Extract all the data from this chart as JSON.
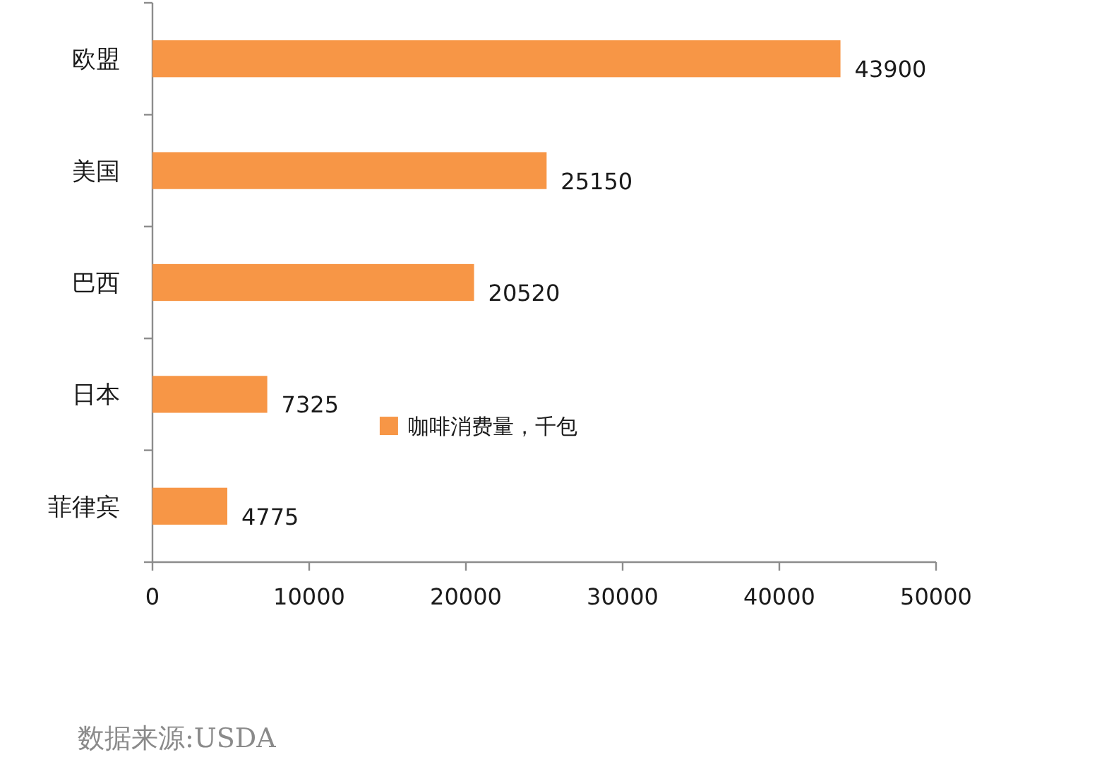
{
  "chart_data": {
    "type": "bar",
    "orientation": "horizontal",
    "categories": [
      "欧盟",
      "美国",
      "巴西",
      "日本",
      "菲律宾"
    ],
    "series": [
      {
        "name": "咖啡消费量，千包",
        "color": "#f79646",
        "values": [
          43900,
          25150,
          20520,
          7325,
          4775
        ]
      }
    ],
    "xlim": [
      0,
      50000
    ],
    "xticks": [
      0,
      10000,
      20000,
      30000,
      40000,
      50000
    ],
    "data_labels": true,
    "legend": "bottom",
    "annotations": [
      "数据来源:USDA"
    ]
  }
}
